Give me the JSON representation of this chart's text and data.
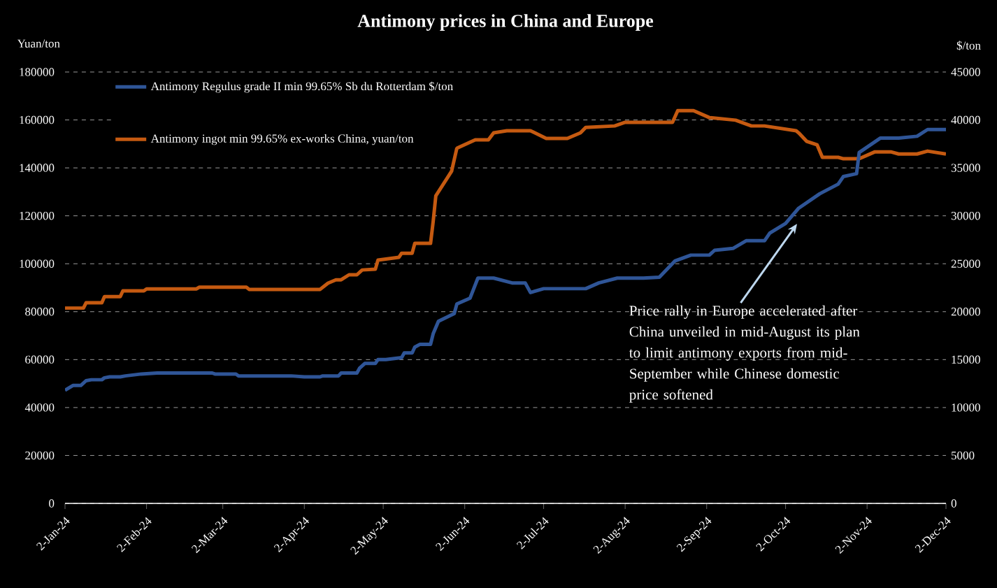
{
  "chart_data": {
    "type": "line",
    "title": "Antimony prices in China and Europe",
    "ylabel": "Yuan/ton",
    "y2label": "$/ton",
    "xlim": [
      "2024-01-02",
      "2024-12-02"
    ],
    "xticks": [
      {
        "value": "2024-01-02",
        "label": "2-Jan-24"
      },
      {
        "value": "2024-02-02",
        "label": "2-Feb-24"
      },
      {
        "value": "2024-03-02",
        "label": "2-Mar-24"
      },
      {
        "value": "2024-04-02",
        "label": "2-Apr-24"
      },
      {
        "value": "2024-05-02",
        "label": "2-May-24"
      },
      {
        "value": "2024-06-02",
        "label": "2-Jun-24"
      },
      {
        "value": "2024-07-02",
        "label": "2-Jul-24"
      },
      {
        "value": "2024-08-02",
        "label": "2-Aug-24"
      },
      {
        "value": "2024-09-02",
        "label": "2-Sep-24"
      },
      {
        "value": "2024-10-02",
        "label": "2-Oct-24"
      },
      {
        "value": "2024-11-02",
        "label": "2-Nov-24"
      },
      {
        "value": "2024-12-02",
        "label": "2-Dec-24"
      }
    ],
    "ylim": [
      0,
      180000
    ],
    "yticks": [
      0,
      20000,
      40000,
      60000,
      80000,
      100000,
      120000,
      140000,
      160000,
      180000
    ],
    "y2lim": [
      0,
      45000
    ],
    "y2ticks": [
      0,
      5000,
      10000,
      15000,
      20000,
      25000,
      30000,
      35000,
      40000,
      45000
    ],
    "grid": "y",
    "legend": "top left",
    "annotations": [
      "Price rally in Europe accelerated after China unveiled in mid-August its plan to limit antimony exports from mid-September while Chinese domestic price softened"
    ],
    "series": [
      {
        "name": "Antimony Regulus grade II min 99.65% Sb du Rotterdam $/ton",
        "color": "#2f5597",
        "axis": "y2",
        "x": [
          "2024-01-02",
          "2024-01-05",
          "2024-01-08",
          "2024-01-10",
          "2024-01-12",
          "2024-01-16",
          "2024-01-17",
          "2024-01-19",
          "2024-01-23",
          "2024-01-25",
          "2024-01-31",
          "2024-02-06",
          "2024-02-27",
          "2024-02-28",
          "2024-03-07",
          "2024-03-08",
          "2024-03-28",
          "2024-04-02",
          "2024-04-08",
          "2024-04-09",
          "2024-04-15",
          "2024-04-16",
          "2024-04-22",
          "2024-04-23",
          "2024-04-25",
          "2024-04-29",
          "2024-04-30",
          "2024-05-03",
          "2024-05-09",
          "2024-05-10",
          "2024-05-13",
          "2024-05-14",
          "2024-05-16",
          "2024-05-20",
          "2024-05-21",
          "2024-05-23",
          "2024-05-29",
          "2024-05-30",
          "2024-06-04",
          "2024-06-07",
          "2024-06-13",
          "2024-06-20",
          "2024-06-25",
          "2024-06-27",
          "2024-07-02",
          "2024-07-18",
          "2024-07-23",
          "2024-07-30",
          "2024-08-09",
          "2024-08-15",
          "2024-08-21",
          "2024-08-27",
          "2024-09-03",
          "2024-09-05",
          "2024-09-12",
          "2024-09-17",
          "2024-09-24",
          "2024-09-26",
          "2024-10-02",
          "2024-10-07",
          "2024-10-15",
          "2024-10-22",
          "2024-10-24",
          "2024-10-29",
          "2024-10-30",
          "2024-11-07",
          "2024-11-14",
          "2024-11-21",
          "2024-11-25",
          "2024-12-02"
        ],
        "values": [
          11800,
          12300,
          12300,
          12800,
          12900,
          12900,
          13100,
          13200,
          13200,
          13300,
          13500,
          13600,
          13600,
          13500,
          13500,
          13300,
          13300,
          13200,
          13200,
          13300,
          13300,
          13600,
          13600,
          14100,
          14600,
          14600,
          15000,
          15000,
          15200,
          15700,
          15700,
          16300,
          16600,
          16600,
          17700,
          19000,
          19800,
          20800,
          21400,
          23500,
          23500,
          23000,
          23000,
          22000,
          22400,
          22400,
          23000,
          23500,
          23500,
          23600,
          25300,
          25900,
          25900,
          26400,
          26600,
          27400,
          27400,
          28200,
          29200,
          30800,
          32300,
          33300,
          34100,
          34400,
          36600,
          38100,
          38100,
          38300,
          39000,
          39000
        ]
      },
      {
        "name": "Antimony ingot min 99.65% ex-works China, yuan/ton",
        "color": "#c55a11",
        "x": [
          "2024-01-02",
          "2024-01-09",
          "2024-01-10",
          "2024-01-16",
          "2024-01-17",
          "2024-01-23",
          "2024-01-24",
          "2024-02-01",
          "2024-02-02",
          "2024-02-21",
          "2024-02-22",
          "2024-03-11",
          "2024-03-12",
          "2024-04-08",
          "2024-04-11",
          "2024-04-14",
          "2024-04-16",
          "2024-04-19",
          "2024-04-22",
          "2024-04-24",
          "2024-04-29",
          "2024-04-30",
          "2024-05-08",
          "2024-05-09",
          "2024-05-13",
          "2024-05-14",
          "2024-05-20",
          "2024-05-21",
          "2024-05-22",
          "2024-05-28",
          "2024-05-30",
          "2024-06-06",
          "2024-06-11",
          "2024-06-13",
          "2024-06-18",
          "2024-06-27",
          "2024-07-03",
          "2024-07-11",
          "2024-07-16",
          "2024-07-18",
          "2024-07-29",
          "2024-08-02",
          "2024-08-20",
          "2024-08-22",
          "2024-08-28",
          "2024-09-03",
          "2024-09-13",
          "2024-09-19",
          "2024-09-24",
          "2024-10-06",
          "2024-10-07",
          "2024-10-10",
          "2024-10-14",
          "2024-10-16",
          "2024-10-22",
          "2024-10-24",
          "2024-10-30",
          "2024-11-05",
          "2024-11-11",
          "2024-11-14",
          "2024-11-21",
          "2024-11-25",
          "2024-12-02"
        ],
        "values": [
          81500,
          81500,
          83700,
          83700,
          86300,
          86300,
          88700,
          88700,
          89500,
          89500,
          90200,
          90200,
          89300,
          89300,
          91900,
          93300,
          93300,
          95400,
          95400,
          97400,
          97700,
          101500,
          102700,
          104400,
          104400,
          108500,
          108500,
          117600,
          128300,
          138600,
          148200,
          151700,
          151700,
          154600,
          155500,
          155500,
          152300,
          152300,
          154600,
          156900,
          157500,
          159000,
          159000,
          163900,
          163900,
          161000,
          159900,
          157500,
          157500,
          155500,
          154600,
          151100,
          149600,
          144400,
          144400,
          143800,
          143800,
          146700,
          146700,
          145800,
          145800,
          147000,
          145800
        ]
      }
    ]
  }
}
